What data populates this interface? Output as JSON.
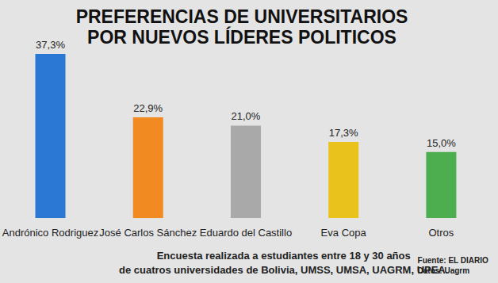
{
  "chart_data": {
    "type": "bar",
    "title": "PREFERENCIAS DE UNIVERSITARIOS\nPOR NUEVOS LÍDERES POLITICOS",
    "categories": [
      "Andrónico Rodriguez",
      "José Carlos Sánchez",
      "Eduardo del Castillo",
      "Eva Copa",
      "Otros"
    ],
    "values": [
      37.3,
      22.9,
      21.0,
      17.3,
      15.0
    ],
    "value_labels": [
      "37,3%",
      "22,9%",
      "21,0%",
      "17,3%",
      "15,0%"
    ],
    "colors": [
      "#2a78d4",
      "#f28a22",
      "#a9a9a9",
      "#e9c21c",
      "#4cae4f"
    ],
    "ylim": [
      0,
      37.3
    ],
    "grid": false,
    "data_labels": true,
    "tick_labels": "x",
    "footnote": "Encuesta realizada a estudiantes entre 18 y 30 años\nde cuatros universidades de Bolivia, UMSS, UMSA, UAGRM, UPEA.",
    "source": "Fuente: EL DIARIO\nDatos: Uagrm"
  }
}
